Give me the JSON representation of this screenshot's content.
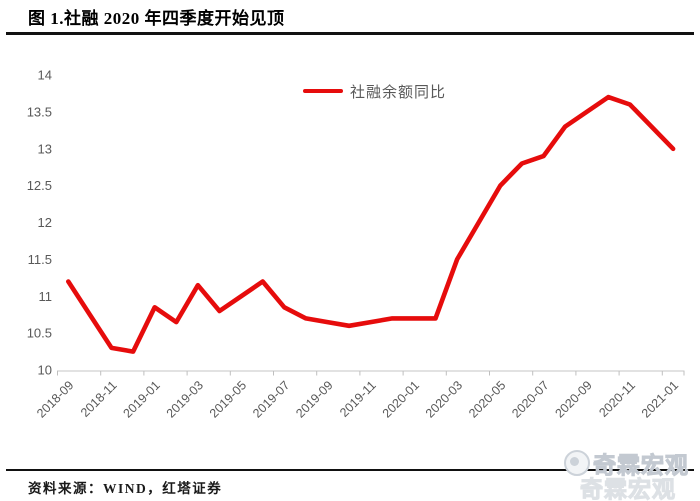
{
  "title": "图 1.社融 2020 年四季度开始见顶",
  "legend": {
    "label": "社融余额同比"
  },
  "footer": {
    "source": "资料来源：WIND，红塔证券"
  },
  "watermark": {
    "text": "奇霖宏观"
  },
  "colors": {
    "line": "#e60c0c",
    "axis_text": "#595959",
    "axis_line": "#d9d9d9",
    "tick_mark": "#bfbfbf",
    "title_text": "#000000",
    "watermark_text": "#cdd2d9"
  },
  "chart_data": {
    "type": "line",
    "title": "图 1.社融 2020 年四季度开始见顶",
    "x": [
      "2018-09",
      "2018-10",
      "2018-11",
      "2018-12",
      "2019-01",
      "2019-02",
      "2019-03",
      "2019-04",
      "2019-05",
      "2019-06",
      "2019-07",
      "2019-08",
      "2019-09",
      "2019-10",
      "2019-11",
      "2019-12",
      "2020-01",
      "2020-02",
      "2020-03",
      "2020-04",
      "2020-05",
      "2020-06",
      "2020-07",
      "2020-08",
      "2020-09",
      "2020-10",
      "2020-11",
      "2020-12",
      "2021-01"
    ],
    "x_tick_every": 2,
    "x_tick_labels": [
      "2018-09",
      "2018-11",
      "2019-01",
      "2019-03",
      "2019-05",
      "2019-07",
      "2019-09",
      "2019-11",
      "2020-01",
      "2020-03",
      "2020-05",
      "2020-07",
      "2020-09",
      "2020-11",
      "2021-01"
    ],
    "series": [
      {
        "name": "社融余额同比",
        "color": "#e60c0c",
        "values": [
          11.2,
          10.75,
          10.3,
          10.25,
          10.85,
          10.65,
          11.15,
          10.8,
          11.0,
          11.2,
          10.85,
          10.7,
          10.65,
          10.6,
          10.65,
          10.7,
          10.7,
          10.7,
          11.5,
          12.0,
          12.5,
          12.8,
          12.9,
          13.3,
          13.5,
          13.7,
          13.6,
          13.3,
          13.0
        ]
      }
    ],
    "ylim": [
      10,
      14
    ],
    "y_ticks": [
      10,
      10.5,
      11,
      11.5,
      12,
      12.5,
      13,
      13.5,
      14
    ],
    "grid": false,
    "legend_position": "top-center",
    "x_label_rotation_deg": 45
  }
}
